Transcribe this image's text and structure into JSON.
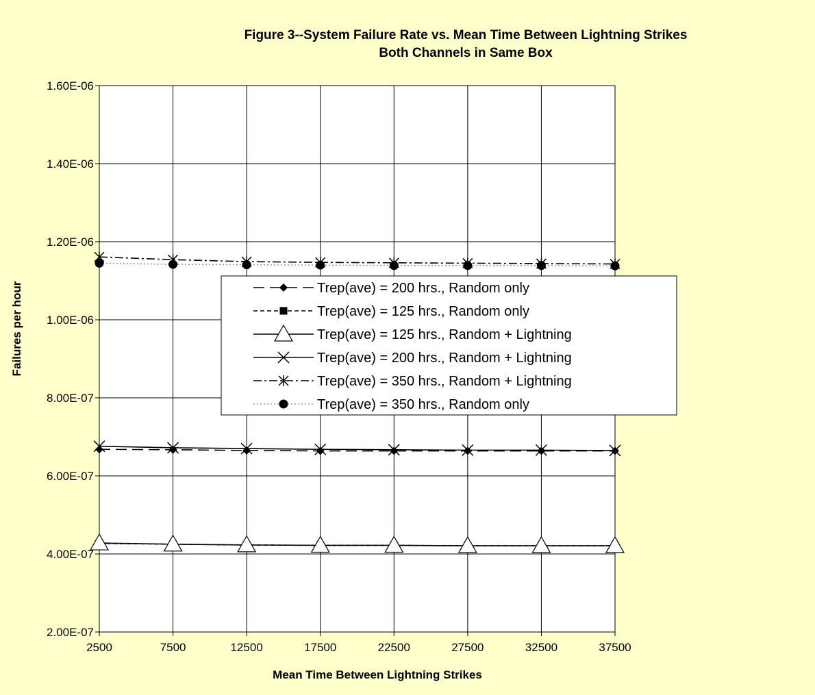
{
  "chart_data": {
    "type": "line",
    "title_lines": [
      "Figure 3--System Failure Rate vs. Mean Time Between Lightning Strikes",
      "Both Channels in Same Box"
    ],
    "xlabel": "Mean Time Between Lightning Strikes",
    "ylabel": "Failures per hour",
    "x": [
      2500,
      7500,
      12500,
      17500,
      22500,
      27500,
      32500,
      37500
    ],
    "x_tick_labels": [
      "2500",
      "7500",
      "12500",
      "17500",
      "22500",
      "27500",
      "32500",
      "37500"
    ],
    "y_ticks": [
      2e-07,
      4e-07,
      6e-07,
      8e-07,
      1e-06,
      1.2e-06,
      1.4e-06,
      1.6e-06
    ],
    "y_tick_labels": [
      "2.00E-07",
      "4.00E-07",
      "6.00E-07",
      "8.00E-07",
      "1.00E-06",
      "1.20E-06",
      "1.40E-06",
      "1.60E-06"
    ],
    "ylim": [
      2e-07,
      1.6e-06
    ],
    "grid": true,
    "legend_position": "right",
    "series": [
      {
        "name": "Trep(ave) = 200 hrs., Random only",
        "values": [
          6.68e-07,
          6.67e-07,
          6.65e-07,
          6.64e-07,
          6.64e-07,
          6.64e-07,
          6.64e-07,
          6.64e-07
        ],
        "marker": "diamond",
        "dash": "long-dash",
        "color": "#000000"
      },
      {
        "name": "Trep(ave) = 125 hrs., Random only",
        "values": [
          4.27e-07,
          4.25e-07,
          4.23e-07,
          4.22e-07,
          4.22e-07,
          4.21e-07,
          4.21e-07,
          4.21e-07
        ],
        "marker": "square",
        "dash": "short-dash",
        "color": "#000000"
      },
      {
        "name": "Trep(ave) = 125 hrs., Random  + Lightning",
        "values": [
          4.28e-07,
          4.25e-07,
          4.23e-07,
          4.22e-07,
          4.22e-07,
          4.21e-07,
          4.21e-07,
          4.21e-07
        ],
        "marker": "triangle",
        "dash": "solid",
        "color": "#000000"
      },
      {
        "name": "Trep(ave) = 200 hrs., Random + Lightning",
        "values": [
          6.76e-07,
          6.72e-07,
          6.7e-07,
          6.68e-07,
          6.67e-07,
          6.66e-07,
          6.66e-07,
          6.65e-07
        ],
        "marker": "x",
        "dash": "solid",
        "color": "#000000"
      },
      {
        "name": "Trep(ave) = 350 hrs., Random + Lightning",
        "values": [
          1.161e-06,
          1.154e-06,
          1.149e-06,
          1.147e-06,
          1.146e-06,
          1.145e-06,
          1.144e-06,
          1.143e-06
        ],
        "marker": "asterisk",
        "dash": "dash-dot",
        "color": "#000000"
      },
      {
        "name": "Trep(ave) = 350 hrs., Random only",
        "values": [
          1.145e-06,
          1.142e-06,
          1.141e-06,
          1.14e-06,
          1.139e-06,
          1.139e-06,
          1.139e-06,
          1.138e-06
        ],
        "marker": "circle",
        "dash": "dotted",
        "color": "#999999"
      }
    ]
  }
}
